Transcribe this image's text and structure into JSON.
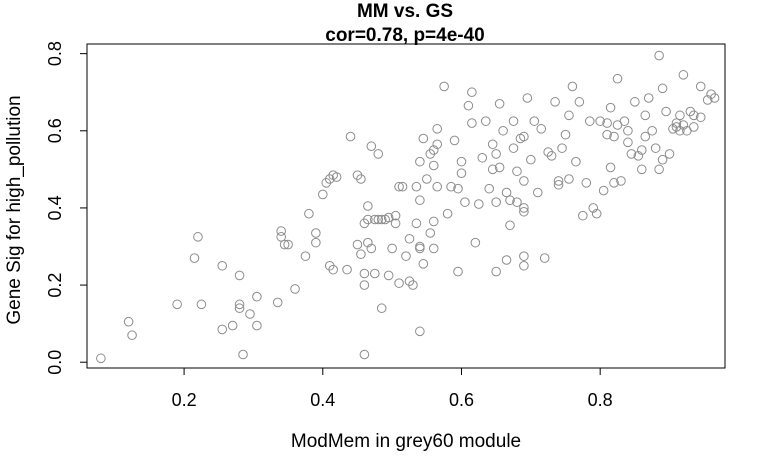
{
  "chart_data": {
    "type": "scatter",
    "title": "MM vs. GS",
    "subtitle": "cor=0.78, p=4e-40",
    "xlabel": "ModMem in grey60 module",
    "ylabel": "Gene Sig for high_pollution",
    "xlim": [
      0.06,
      0.98
    ],
    "ylim": [
      -0.015,
      0.825
    ],
    "x_ticks": [
      "0.2",
      "0.4",
      "0.6",
      "0.8"
    ],
    "y_ticks": [
      "0.0",
      "0.2",
      "0.4",
      "0.6",
      "0.8"
    ],
    "grid": false,
    "marker": "open-circle",
    "point_color": "#8c8c8c",
    "points": [
      [
        0.08,
        0.01
      ],
      [
        0.12,
        0.105
      ],
      [
        0.125,
        0.07
      ],
      [
        0.19,
        0.15
      ],
      [
        0.215,
        0.27
      ],
      [
        0.22,
        0.325
      ],
      [
        0.225,
        0.15
      ],
      [
        0.255,
        0.25
      ],
      [
        0.255,
        0.085
      ],
      [
        0.27,
        0.095
      ],
      [
        0.28,
        0.225
      ],
      [
        0.28,
        0.15
      ],
      [
        0.28,
        0.14
      ],
      [
        0.285,
        0.02
      ],
      [
        0.295,
        0.125
      ],
      [
        0.305,
        0.17
      ],
      [
        0.305,
        0.095
      ],
      [
        0.335,
        0.155
      ],
      [
        0.34,
        0.34
      ],
      [
        0.34,
        0.325
      ],
      [
        0.345,
        0.305
      ],
      [
        0.35,
        0.305
      ],
      [
        0.36,
        0.19
      ],
      [
        0.375,
        0.275
      ],
      [
        0.38,
        0.385
      ],
      [
        0.39,
        0.335
      ],
      [
        0.39,
        0.31
      ],
      [
        0.4,
        0.435
      ],
      [
        0.405,
        0.465
      ],
      [
        0.41,
        0.475
      ],
      [
        0.41,
        0.25
      ],
      [
        0.415,
        0.485
      ],
      [
        0.415,
        0.24
      ],
      [
        0.42,
        0.48
      ],
      [
        0.435,
        0.24
      ],
      [
        0.44,
        0.585
      ],
      [
        0.45,
        0.485
      ],
      [
        0.45,
        0.305
      ],
      [
        0.455,
        0.475
      ],
      [
        0.455,
        0.28
      ],
      [
        0.46,
        0.36
      ],
      [
        0.46,
        0.23
      ],
      [
        0.46,
        0.2
      ],
      [
        0.46,
        0.02
      ],
      [
        0.465,
        0.405
      ],
      [
        0.465,
        0.37
      ],
      [
        0.465,
        0.31
      ],
      [
        0.47,
        0.295
      ],
      [
        0.47,
        0.56
      ],
      [
        0.475,
        0.37
      ],
      [
        0.475,
        0.23
      ],
      [
        0.48,
        0.37
      ],
      [
        0.48,
        0.54
      ],
      [
        0.485,
        0.37
      ],
      [
        0.485,
        0.14
      ],
      [
        0.49,
        0.37
      ],
      [
        0.495,
        0.375
      ],
      [
        0.495,
        0.225
      ],
      [
        0.5,
        0.295
      ],
      [
        0.505,
        0.38
      ],
      [
        0.505,
        0.36
      ],
      [
        0.51,
        0.455
      ],
      [
        0.51,
        0.205
      ],
      [
        0.515,
        0.455
      ],
      [
        0.52,
        0.275
      ],
      [
        0.525,
        0.21
      ],
      [
        0.525,
        0.32
      ],
      [
        0.53,
        0.2
      ],
      [
        0.535,
        0.455
      ],
      [
        0.535,
        0.36
      ],
      [
        0.54,
        0.52
      ],
      [
        0.54,
        0.42
      ],
      [
        0.54,
        0.3
      ],
      [
        0.54,
        0.295
      ],
      [
        0.54,
        0.08
      ],
      [
        0.545,
        0.58
      ],
      [
        0.545,
        0.255
      ],
      [
        0.55,
        0.475
      ],
      [
        0.555,
        0.335
      ],
      [
        0.555,
        0.54
      ],
      [
        0.56,
        0.55
      ],
      [
        0.56,
        0.51
      ],
      [
        0.56,
        0.365
      ],
      [
        0.56,
        0.295
      ],
      [
        0.565,
        0.605
      ],
      [
        0.565,
        0.565
      ],
      [
        0.565,
        0.455
      ],
      [
        0.575,
        0.715
      ],
      [
        0.58,
        0.385
      ],
      [
        0.585,
        0.455
      ],
      [
        0.59,
        0.575
      ],
      [
        0.595,
        0.45
      ],
      [
        0.595,
        0.235
      ],
      [
        0.6,
        0.52
      ],
      [
        0.6,
        0.49
      ],
      [
        0.605,
        0.415
      ],
      [
        0.61,
        0.665
      ],
      [
        0.615,
        0.7
      ],
      [
        0.615,
        0.62
      ],
      [
        0.62,
        0.31
      ],
      [
        0.625,
        0.41
      ],
      [
        0.63,
        0.53
      ],
      [
        0.635,
        0.625
      ],
      [
        0.64,
        0.45
      ],
      [
        0.645,
        0.565
      ],
      [
        0.645,
        0.5
      ],
      [
        0.65,
        0.54
      ],
      [
        0.65,
        0.415
      ],
      [
        0.65,
        0.235
      ],
      [
        0.655,
        0.67
      ],
      [
        0.655,
        0.505
      ],
      [
        0.66,
        0.6
      ],
      [
        0.665,
        0.44
      ],
      [
        0.665,
        0.265
      ],
      [
        0.67,
        0.355
      ],
      [
        0.67,
        0.42
      ],
      [
        0.675,
        0.625
      ],
      [
        0.675,
        0.555
      ],
      [
        0.68,
        0.495
      ],
      [
        0.68,
        0.415
      ],
      [
        0.685,
        0.58
      ],
      [
        0.69,
        0.585
      ],
      [
        0.69,
        0.47
      ],
      [
        0.69,
        0.4
      ],
      [
        0.69,
        0.39
      ],
      [
        0.69,
        0.275
      ],
      [
        0.69,
        0.25
      ],
      [
        0.695,
        0.685
      ],
      [
        0.7,
        0.525
      ],
      [
        0.705,
        0.625
      ],
      [
        0.71,
        0.44
      ],
      [
        0.715,
        0.605
      ],
      [
        0.72,
        0.27
      ],
      [
        0.725,
        0.545
      ],
      [
        0.73,
        0.535
      ],
      [
        0.735,
        0.675
      ],
      [
        0.74,
        0.47
      ],
      [
        0.74,
        0.46
      ],
      [
        0.745,
        0.555
      ],
      [
        0.75,
        0.59
      ],
      [
        0.755,
        0.64
      ],
      [
        0.755,
        0.475
      ],
      [
        0.76,
        0.715
      ],
      [
        0.765,
        0.52
      ],
      [
        0.77,
        0.675
      ],
      [
        0.775,
        0.38
      ],
      [
        0.78,
        0.465
      ],
      [
        0.785,
        0.625
      ],
      [
        0.79,
        0.4
      ],
      [
        0.795,
        0.385
      ],
      [
        0.8,
        0.625
      ],
      [
        0.805,
        0.445
      ],
      [
        0.81,
        0.62
      ],
      [
        0.81,
        0.59
      ],
      [
        0.815,
        0.66
      ],
      [
        0.815,
        0.505
      ],
      [
        0.82,
        0.585
      ],
      [
        0.82,
        0.465
      ],
      [
        0.825,
        0.615
      ],
      [
        0.825,
        0.735
      ],
      [
        0.83,
        0.47
      ],
      [
        0.835,
        0.625
      ],
      [
        0.84,
        0.6
      ],
      [
        0.84,
        0.57
      ],
      [
        0.845,
        0.54
      ],
      [
        0.85,
        0.675
      ],
      [
        0.855,
        0.535
      ],
      [
        0.86,
        0.5
      ],
      [
        0.86,
        0.55
      ],
      [
        0.865,
        0.64
      ],
      [
        0.865,
        0.585
      ],
      [
        0.87,
        0.685
      ],
      [
        0.875,
        0.6
      ],
      [
        0.88,
        0.555
      ],
      [
        0.885,
        0.5
      ],
      [
        0.885,
        0.795
      ],
      [
        0.89,
        0.71
      ],
      [
        0.89,
        0.525
      ],
      [
        0.895,
        0.65
      ],
      [
        0.9,
        0.54
      ],
      [
        0.905,
        0.605
      ],
      [
        0.91,
        0.62
      ],
      [
        0.91,
        0.61
      ],
      [
        0.915,
        0.6
      ],
      [
        0.915,
        0.64
      ],
      [
        0.92,
        0.745
      ],
      [
        0.92,
        0.615
      ],
      [
        0.925,
        0.6
      ],
      [
        0.93,
        0.65
      ],
      [
        0.935,
        0.64
      ],
      [
        0.935,
        0.61
      ],
      [
        0.945,
        0.635
      ],
      [
        0.945,
        0.715
      ],
      [
        0.955,
        0.68
      ],
      [
        0.96,
        0.695
      ],
      [
        0.965,
        0.685
      ]
    ]
  }
}
